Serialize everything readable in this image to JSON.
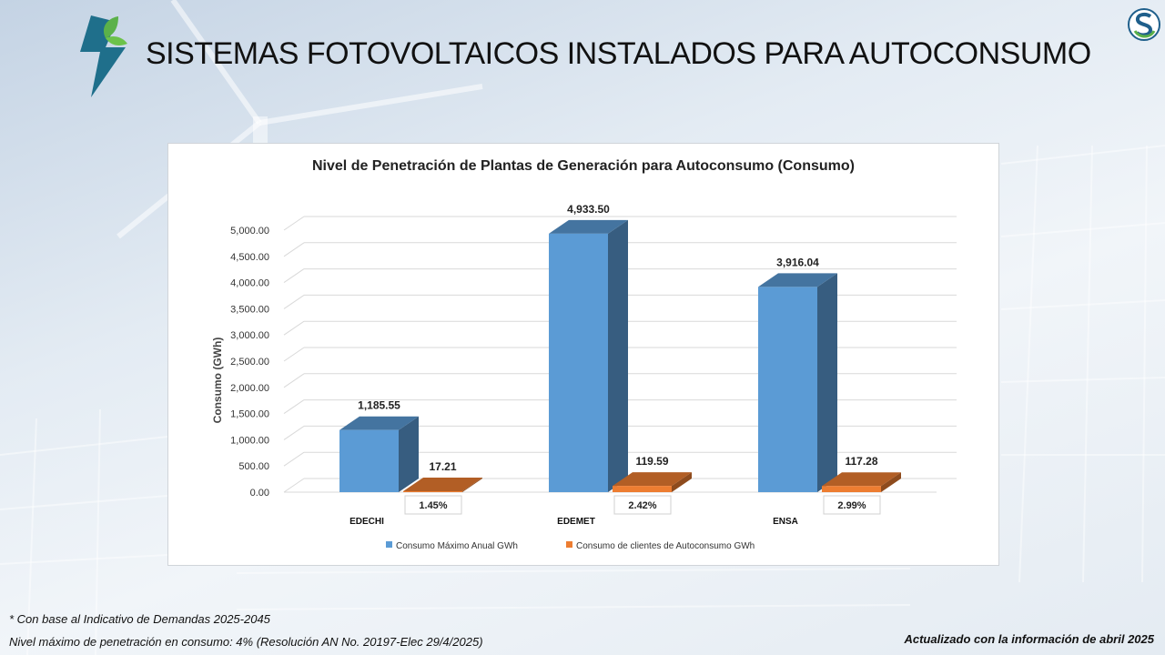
{
  "slide": {
    "title": "SISTEMAS FOTOVOLTAICOS INSTALADOS PARA AUTOCONSUMO",
    "logo_left_icon": "lightning-leaf-logo-icon",
    "logo_right_icon": "s-circle-logo-icon",
    "footnote_1": "* Con base al  Indicativo de Demandas 2025-2045",
    "footnote_2": "Nivel máximo de penetración en consumo: 4% (Resolución AN No. 20197-Elec 29/4/2025)",
    "update_note": "Actualizado con la información de abril 2025"
  },
  "colors": {
    "series_1": "#5b9bd5",
    "series_2": "#ed7d31",
    "title_text": "#111111",
    "logo_teal": "#1f6f8b",
    "logo_green": "#5bb14a"
  },
  "chart_data": {
    "type": "bar",
    "title": "Nivel de Penetración de Plantas de Generación para Autoconsumo (Consumo)",
    "ylabel": "Consumo (GWh)",
    "xlabel": "",
    "categories": [
      "EDECHI",
      "EDEMET",
      "ENSA"
    ],
    "ylim": [
      0,
      5000
    ],
    "y_ticks": [
      "0.00",
      "500.00",
      "1,000.00",
      "1,500.00",
      "2,000.00",
      "2,500.00",
      "3,000.00",
      "3,500.00",
      "4,000.00",
      "4,500.00",
      "5,000.00"
    ],
    "grid": true,
    "legend_position": "bottom",
    "series": [
      {
        "name": "Consumo Máximo Anual GWh",
        "values": [
          1185.55,
          4933.5,
          3916.04
        ],
        "labels": [
          "1,185.55",
          "4,933.50",
          "3,916.04"
        ]
      },
      {
        "name": "Consumo de clientes de Autoconsumo GWh",
        "values": [
          17.21,
          119.59,
          117.28
        ],
        "labels": [
          "17.21",
          "119.59",
          "117.28"
        ]
      }
    ],
    "annotations": [
      "1.45%",
      "2.42%",
      "2.99%"
    ]
  }
}
